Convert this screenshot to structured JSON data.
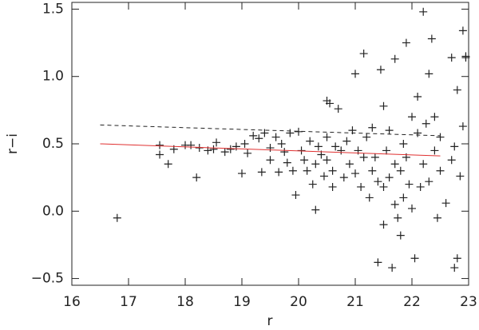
{
  "chart_data": {
    "type": "scatter",
    "x_label": "r",
    "y_label": "r−i",
    "xlim": [
      16,
      23
    ],
    "xticks": [
      16,
      17,
      18,
      19,
      20,
      21,
      22,
      23
    ],
    "ylim": [
      -0.55,
      1.55
    ],
    "yticks": [
      {
        "value": -0.5,
        "label": "−0.5"
      },
      {
        "value": 0,
        "label": "0.0"
      },
      0.5,
      {
        "value": 1,
        "label": "1.0"
      },
      1.5
    ],
    "series": [
      {
        "mode": "markers",
        "marker": "+",
        "color": "#222222",
        "x": [
          16.8,
          17.55,
          17.55,
          17.7,
          17.8,
          18.0,
          18.1,
          18.2,
          18.25,
          18.4,
          18.5,
          18.55,
          18.7,
          18.8,
          18.9,
          19.0,
          19.05,
          19.1,
          19.2,
          19.3,
          19.35,
          19.4,
          19.5,
          19.5,
          19.6,
          19.65,
          19.7,
          19.75,
          19.8,
          19.85,
          19.9,
          19.95,
          20.0,
          20.05,
          20.1,
          20.15,
          20.2,
          20.25,
          20.3,
          20.3,
          20.35,
          20.4,
          20.45,
          20.5,
          20.5,
          20.5,
          20.55,
          20.6,
          20.6,
          20.65,
          20.7,
          20.75,
          20.8,
          20.85,
          20.9,
          20.95,
          21.0,
          21.0,
          21.05,
          21.1,
          21.15,
          21.15,
          21.2,
          21.25,
          21.3,
          21.3,
          21.35,
          21.4,
          21.4,
          21.45,
          21.5,
          21.5,
          21.5,
          21.55,
          21.6,
          21.6,
          21.65,
          21.7,
          21.7,
          21.7,
          21.75,
          21.8,
          21.8,
          21.85,
          21.85,
          21.9,
          21.9,
          21.95,
          22.0,
          22.0,
          22.05,
          22.1,
          22.1,
          22.15,
          22.2,
          22.2,
          22.25,
          22.3,
          22.3,
          22.35,
          22.4,
          22.4,
          22.45,
          22.5,
          22.5,
          22.6,
          22.7,
          22.7,
          22.75,
          22.75,
          22.8,
          22.8,
          22.85,
          22.9,
          22.9,
          22.95,
          22.95
        ],
        "values": [
          -0.05,
          0.49,
          0.42,
          0.35,
          0.46,
          0.49,
          0.49,
          0.25,
          0.47,
          0.45,
          0.46,
          0.51,
          0.44,
          0.46,
          0.48,
          0.28,
          0.5,
          0.43,
          0.56,
          0.54,
          0.29,
          0.58,
          0.47,
          0.38,
          0.55,
          0.29,
          0.5,
          0.44,
          0.36,
          0.58,
          0.3,
          0.12,
          0.59,
          0.45,
          0.38,
          0.3,
          0.52,
          0.2,
          0.01,
          0.35,
          0.48,
          0.42,
          0.26,
          0.82,
          0.55,
          0.38,
          0.8,
          0.3,
          0.18,
          0.48,
          0.76,
          0.45,
          0.25,
          0.52,
          0.35,
          0.6,
          1.02,
          0.28,
          0.45,
          0.18,
          0.4,
          1.17,
          0.55,
          0.1,
          0.62,
          0.3,
          0.4,
          0.22,
          -0.38,
          1.05,
          0.78,
          0.18,
          -0.1,
          0.45,
          0.6,
          0.25,
          -0.42,
          1.13,
          0.35,
          0.05,
          -0.05,
          0.3,
          -0.18,
          0.5,
          0.1,
          1.25,
          0.4,
          0.2,
          0.7,
          0.02,
          -0.35,
          0.85,
          0.58,
          0.18,
          1.48,
          0.35,
          0.65,
          1.02,
          0.22,
          1.28,
          0.7,
          0.45,
          -0.05,
          0.55,
          0.3,
          0.06,
          1.14,
          0.38,
          0.48,
          -0.42,
          0.9,
          -0.35,
          0.26,
          1.34,
          0.63,
          1.14,
          1.15
        ]
      },
      {
        "mode": "line",
        "color": "#e03030",
        "x": [
          16.5,
          22.5
        ],
        "values": [
          0.5,
          0.41
        ]
      },
      {
        "mode": "line",
        "color": "#222222",
        "dash": "5,4",
        "x": [
          16.5,
          22.5
        ],
        "values": [
          0.64,
          0.56
        ]
      }
    ]
  }
}
